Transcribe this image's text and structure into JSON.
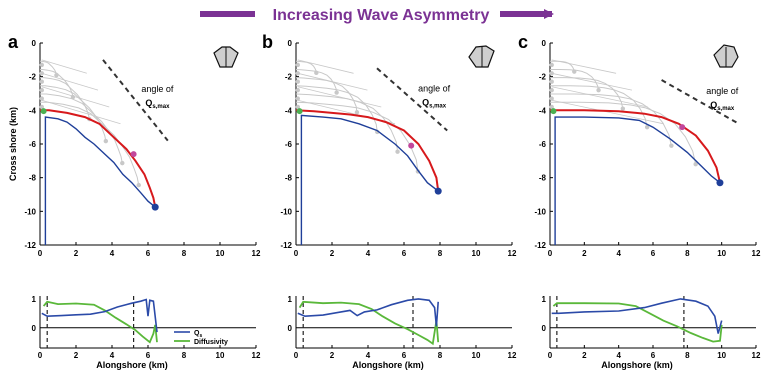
{
  "header": {
    "title": "Increasing Wave Asymmetry",
    "accent_color": "#7b3294"
  },
  "colors": {
    "shoreline": "#d7191c",
    "shoreline_lower": "#1f3f99",
    "qs": "#2b4aa8",
    "diffusivity": "#5ab83a",
    "ghost": "#c8c8c8",
    "marker_left": "#4caf50",
    "marker_mid": "#c2479b",
    "marker_end": "#1f3f99"
  },
  "annotation": {
    "line1": "angle of",
    "line2_main": "Q",
    "line2_sub": "s,max"
  },
  "legend": {
    "qs_main": "Q",
    "qs_sub": "s",
    "diffusivity": "Diffusivity"
  },
  "chart_data": [
    {
      "panel": "a",
      "type": "line",
      "ylabel": "Cross shore (km)",
      "xlim": [
        0,
        12
      ],
      "ylim": [
        -12,
        0
      ],
      "xticks": [
        "0",
        "2",
        "4",
        "6",
        "8",
        "10",
        "12"
      ],
      "yticks": [
        "0",
        "-2",
        "-4",
        "-6",
        "-8",
        "-10",
        "-12"
      ],
      "wave_rose": "narrow",
      "shoreline": [
        [
          0,
          -4
        ],
        [
          0.5,
          -4
        ],
        [
          1.5,
          -4.15
        ],
        [
          2.5,
          -4.4
        ],
        [
          3.3,
          -4.8
        ],
        [
          4.1,
          -5.6
        ],
        [
          4.8,
          -6.3
        ],
        [
          5.3,
          -7
        ],
        [
          5.8,
          -7.8
        ],
        [
          6.1,
          -8.6
        ],
        [
          6.3,
          -9.2
        ],
        [
          6.4,
          -9.75
        ]
      ],
      "lower_shoreline": [
        [
          0.3,
          -4.4
        ],
        [
          1,
          -4.5
        ],
        [
          1.5,
          -4.7
        ],
        [
          2,
          -5.1
        ],
        [
          2.5,
          -5.6
        ],
        [
          3,
          -6
        ],
        [
          3.6,
          -6.6
        ],
        [
          4.1,
          -7.1
        ],
        [
          4.6,
          -7.8
        ],
        [
          5.1,
          -8.3
        ],
        [
          5.6,
          -8.9
        ],
        [
          6,
          -9.4
        ],
        [
          6.4,
          -9.75
        ]
      ],
      "markers": {
        "left": [
          0.2,
          -4.05
        ],
        "mid": [
          5.2,
          -6.6
        ],
        "end": [
          6.4,
          -9.75
        ]
      },
      "angle_line": [
        [
          3.5,
          -1
        ],
        [
          7.1,
          -5.8
        ]
      ],
      "sub": {
        "xlabel": "Alongshore (km)",
        "xlim": [
          0,
          12
        ],
        "ylim": [
          -0.7,
          1.1
        ],
        "xticks": [
          "0",
          "2",
          "4",
          "6",
          "8",
          "10",
          "12"
        ],
        "yticks": [
          "1",
          "0"
        ],
        "qs": [
          [
            0.1,
            0.5
          ],
          [
            0.4,
            0.4
          ],
          [
            1.2,
            0.42
          ],
          [
            2,
            0.45
          ],
          [
            2.8,
            0.47
          ],
          [
            3.6,
            0.56
          ],
          [
            4.3,
            0.72
          ],
          [
            5.1,
            0.85
          ],
          [
            5.6,
            0.92
          ],
          [
            5.9,
            0.98
          ],
          [
            6,
            0.4
          ],
          [
            6.1,
            0.95
          ],
          [
            6.3,
            0.92
          ],
          [
            6.5,
            -0.15
          ]
        ],
        "diffusivity": [
          [
            0.2,
            0.75
          ],
          [
            0.4,
            0.9
          ],
          [
            1,
            0.82
          ],
          [
            2,
            0.84
          ],
          [
            3,
            0.8
          ],
          [
            3.6,
            0.6
          ],
          [
            4.2,
            0.35
          ],
          [
            4.8,
            0.12
          ],
          [
            5.3,
            -0.08
          ],
          [
            5.7,
            -0.3
          ],
          [
            6.1,
            -0.5
          ],
          [
            6.3,
            -0.2
          ],
          [
            6.4,
            0.1
          ],
          [
            6.5,
            -0.5
          ]
        ],
        "vlines": [
          0.4,
          5.2
        ],
        "show_legend": true
      }
    },
    {
      "panel": "b",
      "type": "line",
      "xlim": [
        0,
        12
      ],
      "ylim": [
        -12,
        0
      ],
      "xticks": [
        "0",
        "2",
        "4",
        "6",
        "8",
        "10",
        "12"
      ],
      "yticks": [
        "0",
        "-2",
        "-4",
        "-6",
        "-8",
        "-10",
        "-12"
      ],
      "wave_rose": "medium",
      "shoreline": [
        [
          0,
          -4
        ],
        [
          1,
          -4.05
        ],
        [
          2,
          -4.15
        ],
        [
          3,
          -4.25
        ],
        [
          4,
          -4.4
        ],
        [
          5,
          -4.7
        ],
        [
          6,
          -5.2
        ],
        [
          6.8,
          -6
        ],
        [
          7.4,
          -7
        ],
        [
          7.8,
          -8
        ],
        [
          7.9,
          -8.8
        ]
      ],
      "lower_shoreline": [
        [
          0.3,
          -4.3
        ],
        [
          1.5,
          -4.4
        ],
        [
          2.5,
          -4.5
        ],
        [
          3.5,
          -4.8
        ],
        [
          4.5,
          -5.2
        ],
        [
          5.5,
          -6
        ],
        [
          6.2,
          -6.7
        ],
        [
          6.8,
          -7.6
        ],
        [
          7.3,
          -8.3
        ],
        [
          7.9,
          -8.8
        ]
      ],
      "markers": {
        "left": [
          0.2,
          -4.05
        ],
        "mid": [
          6.4,
          -6.1
        ],
        "end": [
          7.9,
          -8.8
        ]
      },
      "angle_line": [
        [
          4.5,
          -1.5
        ],
        [
          8.4,
          -5.2
        ]
      ],
      "sub": {
        "xlabel": "Alongshore (km)",
        "xlim": [
          0,
          12
        ],
        "ylim": [
          -0.7,
          1.1
        ],
        "xticks": [
          "0",
          "2",
          "4",
          "6",
          "8",
          "10",
          "12"
        ],
        "yticks": [
          "1",
          "0"
        ],
        "qs": [
          [
            0.1,
            0.5
          ],
          [
            0.5,
            0.4
          ],
          [
            1.5,
            0.44
          ],
          [
            2.5,
            0.55
          ],
          [
            3,
            0.6
          ],
          [
            3.4,
            0.42
          ],
          [
            3.8,
            0.55
          ],
          [
            4.5,
            0.62
          ],
          [
            5.3,
            0.8
          ],
          [
            6.2,
            0.95
          ],
          [
            6.8,
            1
          ],
          [
            7.4,
            0.95
          ],
          [
            7.7,
            0.7
          ],
          [
            7.8,
            0.05
          ],
          [
            7.9,
            0.9
          ]
        ],
        "diffusivity": [
          [
            0.2,
            0.7
          ],
          [
            0.4,
            0.9
          ],
          [
            1.5,
            0.85
          ],
          [
            2.5,
            0.87
          ],
          [
            3.5,
            0.82
          ],
          [
            4.2,
            0.65
          ],
          [
            4.8,
            0.4
          ],
          [
            5.5,
            0.15
          ],
          [
            6.2,
            -0.05
          ],
          [
            6.8,
            -0.25
          ],
          [
            7.3,
            -0.42
          ],
          [
            7.6,
            -0.55
          ],
          [
            7.8,
            0.25
          ],
          [
            7.9,
            -0.5
          ]
        ],
        "vlines": [
          0.4,
          6.5
        ],
        "show_legend": false
      }
    },
    {
      "panel": "c",
      "type": "line",
      "xlim": [
        0,
        12
      ],
      "ylim": [
        -12,
        0
      ],
      "xticks": [
        "0",
        "2",
        "4",
        "6",
        "8",
        "10",
        "12"
      ],
      "yticks": [
        "0",
        "-2",
        "-4",
        "-6",
        "-8",
        "-10",
        "-12"
      ],
      "wave_rose": "wide",
      "shoreline": [
        [
          0,
          -4
        ],
        [
          2,
          -4
        ],
        [
          4,
          -4.05
        ],
        [
          5.5,
          -4.2
        ],
        [
          6.5,
          -4.4
        ],
        [
          7.5,
          -4.8
        ],
        [
          8.5,
          -5.5
        ],
        [
          9.2,
          -6.4
        ],
        [
          9.7,
          -7.4
        ],
        [
          9.9,
          -8.3
        ]
      ],
      "lower_shoreline": [
        [
          0.3,
          -4.4
        ],
        [
          2,
          -4.4
        ],
        [
          4,
          -4.45
        ],
        [
          5.2,
          -4.6
        ],
        [
          6,
          -5
        ],
        [
          7,
          -5.7
        ],
        [
          8,
          -6.5
        ],
        [
          8.8,
          -7.3
        ],
        [
          9.4,
          -7.9
        ],
        [
          9.9,
          -8.3
        ]
      ],
      "markers": {
        "left": [
          0.2,
          -4.05
        ],
        "mid": [
          7.7,
          -5
        ],
        "end": [
          9.9,
          -8.3
        ]
      },
      "angle_line": [
        [
          6.5,
          -2.2
        ],
        [
          11,
          -4.8
        ]
      ],
      "sub": {
        "xlabel": "Alongshore (km)",
        "xlim": [
          0,
          12
        ],
        "ylim": [
          -0.7,
          1.1
        ],
        "xticks": [
          "0",
          "2",
          "4",
          "6",
          "8",
          "10",
          "12"
        ],
        "yticks": [
          "1",
          "0"
        ],
        "qs": [
          [
            0.1,
            0.5
          ],
          [
            0.5,
            0.5
          ],
          [
            2,
            0.55
          ],
          [
            4,
            0.58
          ],
          [
            5.5,
            0.7
          ],
          [
            6.5,
            0.85
          ],
          [
            7.6,
            1
          ],
          [
            8.5,
            0.92
          ],
          [
            9.2,
            0.75
          ],
          [
            9.6,
            0.4
          ],
          [
            9.8,
            -0.2
          ],
          [
            10,
            0.25
          ]
        ],
        "diffusivity": [
          [
            0.2,
            0.75
          ],
          [
            0.4,
            0.85
          ],
          [
            2,
            0.85
          ],
          [
            4,
            0.84
          ],
          [
            5,
            0.75
          ],
          [
            5.8,
            0.5
          ],
          [
            6.6,
            0.25
          ],
          [
            7.4,
            0.05
          ],
          [
            8.2,
            -0.18
          ],
          [
            8.9,
            -0.35
          ],
          [
            9.5,
            -0.48
          ],
          [
            9.9,
            -0.45
          ],
          [
            10,
            0.1
          ]
        ],
        "vlines": [
          0.4,
          7.8
        ],
        "show_legend": false
      }
    }
  ]
}
